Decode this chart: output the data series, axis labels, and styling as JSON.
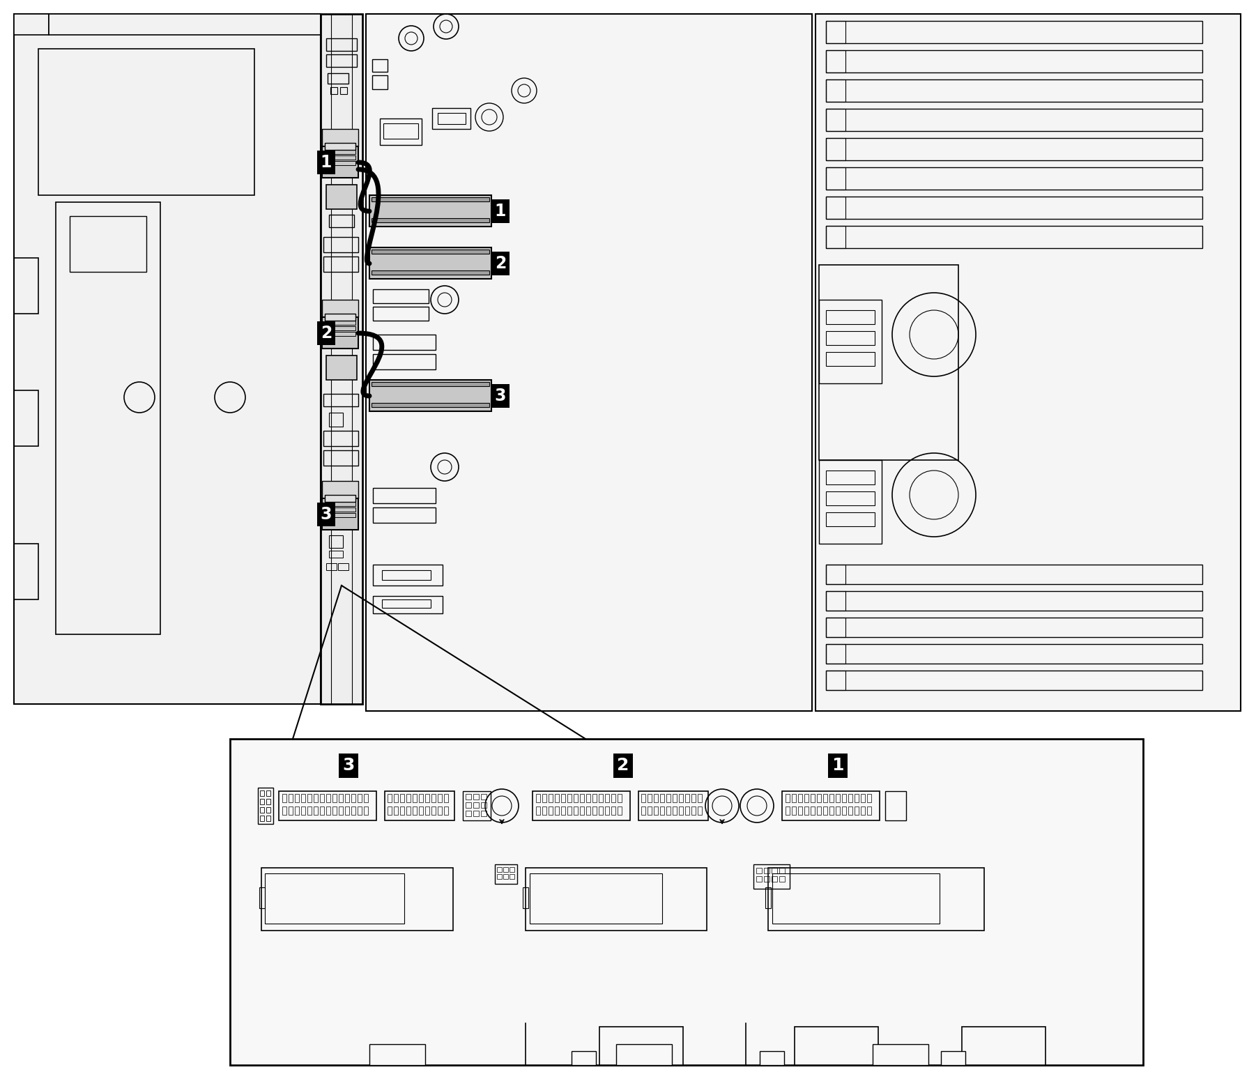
{
  "bg_color": "#ffffff",
  "lc": "#000000",
  "gray_conn": "#c8c8c8",
  "gray_light": "#e0e0e0",
  "figsize": [
    18.02,
    15.58
  ],
  "dpi": 100
}
